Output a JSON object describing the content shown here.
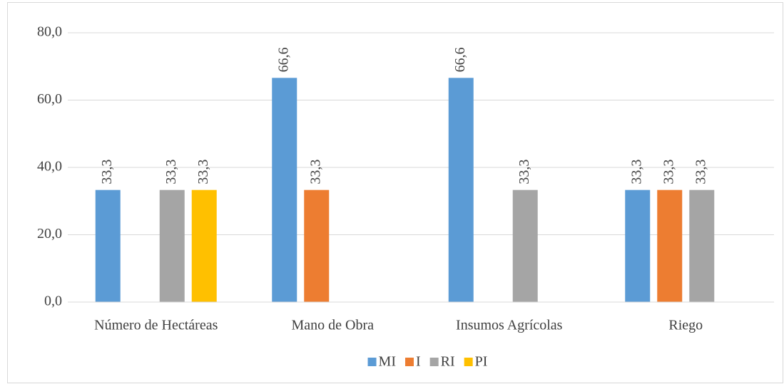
{
  "chart_data": {
    "type": "bar",
    "categories": [
      "Número de Hectáreas",
      "Mano de Obra",
      "Insumos Agrícolas",
      "Riego"
    ],
    "series": [
      {
        "name": "MI",
        "color": "#5b9bd5",
        "values": [
          33.3,
          66.6,
          66.6,
          33.3
        ],
        "value_labels": [
          "33,3",
          "66,6",
          "66,6",
          "33,3"
        ]
      },
      {
        "name": "I",
        "color": "#ed7d31",
        "values": [
          null,
          33.3,
          null,
          33.3
        ],
        "value_labels": [
          null,
          "33,3",
          null,
          "33,3"
        ]
      },
      {
        "name": "RI",
        "color": "#a5a5a5",
        "values": [
          33.3,
          null,
          33.3,
          33.3
        ],
        "value_labels": [
          "33,3",
          null,
          "33,3",
          "33,3"
        ]
      },
      {
        "name": "PI",
        "color": "#ffc000",
        "values": [
          33.3,
          null,
          null,
          null
        ],
        "value_labels": [
          "33,3",
          null,
          null,
          null
        ]
      }
    ],
    "ylim": [
      0,
      80
    ],
    "yticks": [
      {
        "value": 0,
        "label": "0,0"
      },
      {
        "value": 20,
        "label": "20,0"
      },
      {
        "value": 40,
        "label": "40,0"
      },
      {
        "value": 60,
        "label": "60,0"
      },
      {
        "value": 80,
        "label": "80,0"
      }
    ],
    "grid": true,
    "legend": "bottom"
  }
}
